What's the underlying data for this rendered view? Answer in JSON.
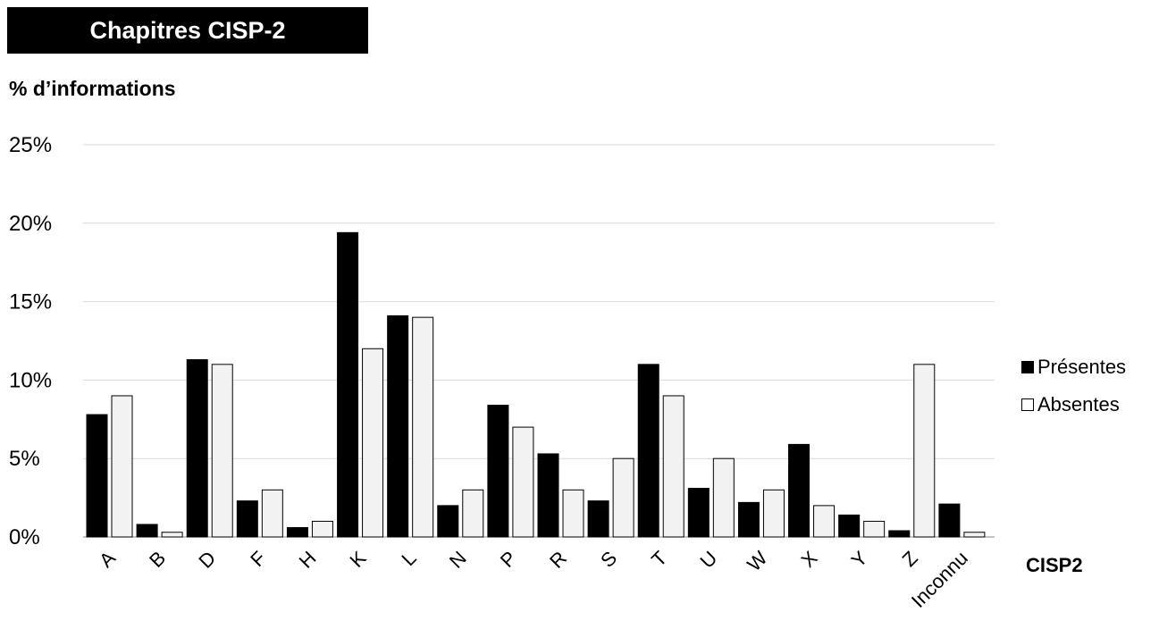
{
  "chart_data": {
    "type": "bar",
    "title": "Chapitres CISP-2",
    "ylabel": "% d’informations",
    "xlabel": "CISP2",
    "ylim": [
      0,
      25
    ],
    "yticks": [
      "0%",
      "5%",
      "10%",
      "15%",
      "20%",
      "25%"
    ],
    "grid": true,
    "legend_position": "right",
    "categories": [
      "A",
      "B",
      "D",
      "F",
      "H",
      "K",
      "L",
      "N",
      "P",
      "R",
      "S",
      "T",
      "U",
      "W",
      "X",
      "Y",
      "Z",
      "Inconnu"
    ],
    "series": [
      {
        "name": "Présentes",
        "color": "#000000",
        "values": [
          7.8,
          0.8,
          11.3,
          2.3,
          0.6,
          19.4,
          14.1,
          2.0,
          8.4,
          5.3,
          2.3,
          11.0,
          3.1,
          2.2,
          5.9,
          1.4,
          0.4,
          2.1
        ]
      },
      {
        "name": "Absentes",
        "color": "#f2f2f2",
        "values": [
          9.0,
          0.3,
          11.0,
          3.0,
          1.0,
          12.0,
          14.0,
          3.0,
          7.0,
          3.0,
          5.0,
          9.0,
          5.0,
          3.0,
          2.0,
          1.0,
          11.0,
          0.3
        ]
      }
    ]
  }
}
